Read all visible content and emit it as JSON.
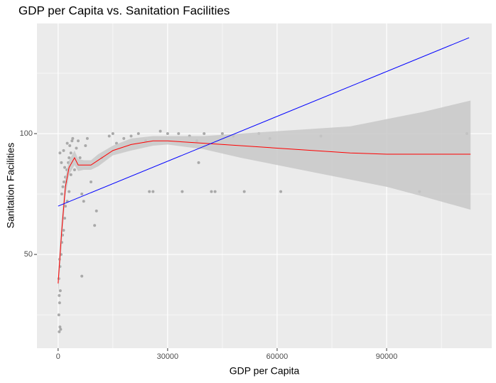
{
  "chart_data": {
    "type": "scatter",
    "title": "GDP per Capita vs. Sanitation Facilities",
    "x_label": "GDP per Capita",
    "y_label": "Sanitation Facilities",
    "xlim": [
      -5800,
      118800
    ],
    "ylim": [
      11.2,
      145.6
    ],
    "xticks": [
      0,
      30000,
      60000,
      90000
    ],
    "yticks": [
      50,
      100
    ],
    "minor_xticks": [
      15000,
      45000,
      75000,
      105000
    ],
    "minor_yticks": [
      25,
      75,
      125
    ],
    "grid": true,
    "panel_color": "#ebebeb",
    "points": {
      "color": "#a9a9a9",
      "x": [
        300,
        500,
        700,
        200,
        400,
        300,
        600,
        200,
        500,
        400,
        800,
        1000,
        1200,
        1500,
        1800,
        2000,
        2500,
        1000,
        1300,
        1600,
        2000,
        2400,
        2800,
        3000,
        3500,
        3200,
        3800,
        4000,
        2500,
        1500,
        500,
        900,
        1800,
        2200,
        3000,
        3500,
        4500,
        5000,
        5500,
        6000,
        6500,
        7000,
        7500,
        8000,
        9000,
        10000,
        10500,
        6500,
        12000,
        14000,
        15000,
        16000,
        18000,
        20000,
        22000,
        24000,
        25000,
        26000,
        28000,
        30000,
        33000,
        34000,
        36000,
        38000,
        38500,
        40000,
        42000,
        43000,
        45000,
        48000,
        51000,
        55000,
        58000,
        61000,
        72000,
        99000,
        112000
      ],
      "y": [
        18,
        20,
        19,
        25,
        30,
        33,
        35,
        40,
        45,
        48,
        50,
        55,
        58,
        60,
        65,
        70,
        72,
        75,
        78,
        80,
        82,
        85,
        88,
        90,
        92,
        95,
        97,
        98,
        96,
        93,
        92,
        88,
        86,
        80,
        76,
        83,
        85,
        94,
        97,
        90,
        75,
        72,
        95,
        98,
        80,
        62,
        68,
        41,
        90,
        99,
        100,
        96,
        98,
        99,
        100,
        97,
        76,
        76,
        101,
        100,
        100,
        76,
        99,
        97,
        88,
        100,
        76,
        76,
        100,
        99,
        76,
        100,
        98,
        76,
        99,
        76,
        100
      ]
    },
    "smooth": {
      "color": "#ff0000",
      "band_color": "#c8c8c8",
      "x": [
        0,
        1000,
        2000,
        3000,
        4500,
        5500,
        7000,
        9000,
        11000,
        15000,
        20000,
        26000,
        30000,
        40000,
        50000,
        60000,
        70000,
        80000,
        90000,
        100000,
        113000
      ],
      "y": [
        38,
        60,
        78,
        86,
        90,
        87,
        87,
        87,
        89,
        93,
        95.5,
        97,
        97,
        96,
        95,
        94,
        93,
        92,
        91.5,
        91.5,
        91.5
      ],
      "lower": [
        33,
        55,
        74,
        83,
        87,
        84.5,
        85,
        85,
        86.5,
        91,
        93,
        95,
        95.5,
        93.5,
        90,
        87,
        84,
        81,
        78,
        74,
        68.5
      ],
      "upper": [
        43,
        65,
        82,
        89,
        93,
        89.5,
        89,
        89,
        91.5,
        95,
        98,
        99,
        99,
        99,
        100,
        101,
        102,
        103,
        106,
        109,
        113.7
      ]
    },
    "linear": {
      "color": "#0000ff",
      "x": [
        0,
        112600
      ],
      "y": [
        70,
        139.7
      ]
    }
  }
}
